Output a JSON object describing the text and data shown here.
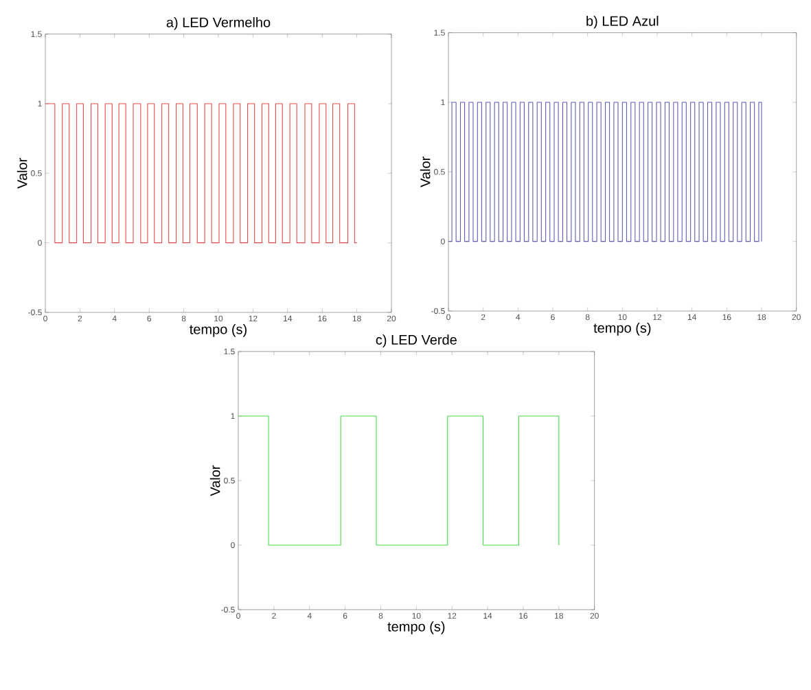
{
  "chart_data": [
    {
      "type": "step",
      "title": "a)  LED Vermelho",
      "xlabel": "tempo (s)",
      "ylabel": "Valor",
      "xlim": [
        0,
        20
      ],
      "ylim": [
        -0.5,
        1.5
      ],
      "xticks": [
        0,
        2,
        4,
        6,
        8,
        10,
        12,
        14,
        16,
        18,
        20
      ],
      "yticks": [
        -0.5,
        0,
        0.5,
        1,
        1.5
      ],
      "series": [
        {
          "color": "#e04848",
          "x": [
            0,
            0.55,
            0.98,
            1.38,
            1.81,
            2.2,
            2.64,
            3.03,
            3.46,
            3.86,
            4.25,
            4.65,
            5.08,
            5.51,
            5.91,
            6.3,
            6.73,
            7.13,
            7.56,
            7.95,
            8.35,
            8.78,
            9.21,
            9.61,
            10.04,
            10.43,
            10.87,
            11.26,
            11.69,
            12.09,
            12.52,
            12.91,
            13.31,
            13.7,
            14.13,
            14.53,
            15.0,
            15.39,
            15.83,
            16.22,
            16.61,
            17.01,
            17.48,
            17.87,
            18
          ],
          "values": [
            1,
            0,
            1,
            0,
            1,
            0,
            1,
            0,
            1,
            0,
            1,
            0,
            1,
            0,
            1,
            0,
            1,
            0,
            1,
            0,
            1,
            0,
            1,
            0,
            1,
            0,
            1,
            0,
            1,
            0,
            1,
            0,
            1,
            0,
            1,
            0,
            1,
            0,
            1,
            0,
            1,
            0,
            1,
            0,
            0
          ]
        }
      ]
    },
    {
      "type": "step",
      "title": "b)  LED Azul",
      "xlabel": "tempo (s)",
      "ylabel": "Valor",
      "xlim": [
        0,
        20
      ],
      "ylim": [
        -0.5,
        1.5
      ],
      "xticks": [
        0,
        2,
        4,
        6,
        8,
        10,
        12,
        14,
        16,
        18,
        20
      ],
      "yticks": [
        -0.5,
        0,
        0.5,
        1,
        1.5
      ],
      "series": [
        {
          "color": "#5a5ab8",
          "x": [
            0,
            0.2,
            0.44,
            0.69,
            0.93,
            1.18,
            1.42,
            1.67,
            1.91,
            2.16,
            2.4,
            2.65,
            2.89,
            3.14,
            3.38,
            3.63,
            3.87,
            4.12,
            4.36,
            4.61,
            4.85,
            5.1,
            5.34,
            5.59,
            5.83,
            6.08,
            6.32,
            6.57,
            6.81,
            7.06,
            7.3,
            7.55,
            7.79,
            8.04,
            8.28,
            8.53,
            8.77,
            9.02,
            9.26,
            9.51,
            9.75,
            10.0,
            10.24,
            10.49,
            10.73,
            10.98,
            11.22,
            11.47,
            11.71,
            11.96,
            12.2,
            12.45,
            12.69,
            12.94,
            13.18,
            13.43,
            13.67,
            13.92,
            14.16,
            14.41,
            14.65,
            14.9,
            15.14,
            15.39,
            15.63,
            15.88,
            16.12,
            16.37,
            16.61,
            16.86,
            17.1,
            17.35,
            17.59,
            17.84,
            18.0
          ],
          "values": [
            0,
            1,
            0,
            1,
            0,
            1,
            0,
            1,
            0,
            1,
            0,
            1,
            0,
            1,
            0,
            1,
            0,
            1,
            0,
            1,
            0,
            1,
            0,
            1,
            0,
            1,
            0,
            1,
            0,
            1,
            0,
            1,
            0,
            1,
            0,
            1,
            0,
            1,
            0,
            1,
            0,
            1,
            0,
            1,
            0,
            1,
            0,
            1,
            0,
            1,
            0,
            1,
            0,
            1,
            0,
            1,
            0,
            1,
            0,
            1,
            0,
            1,
            0,
            1,
            0,
            1,
            0,
            1,
            0,
            1,
            0,
            1,
            0,
            1,
            0
          ]
        }
      ]
    },
    {
      "type": "step",
      "title": "c)   LED Verde",
      "xlabel": "tempo (s)",
      "ylabel": "Valor",
      "xlim": [
        0,
        20
      ],
      "ylim": [
        -0.5,
        1.5
      ],
      "xticks": [
        0,
        2,
        4,
        6,
        8,
        10,
        12,
        14,
        16,
        18,
        20
      ],
      "yticks": [
        -0.5,
        0,
        0.5,
        1,
        1.5
      ],
      "series": [
        {
          "color": "#44dd44",
          "x": [
            0,
            1.7,
            5.75,
            7.75,
            11.75,
            13.75,
            15.75,
            18
          ],
          "values": [
            1,
            0,
            1,
            0,
            1,
            0,
            1,
            0
          ]
        }
      ]
    }
  ]
}
